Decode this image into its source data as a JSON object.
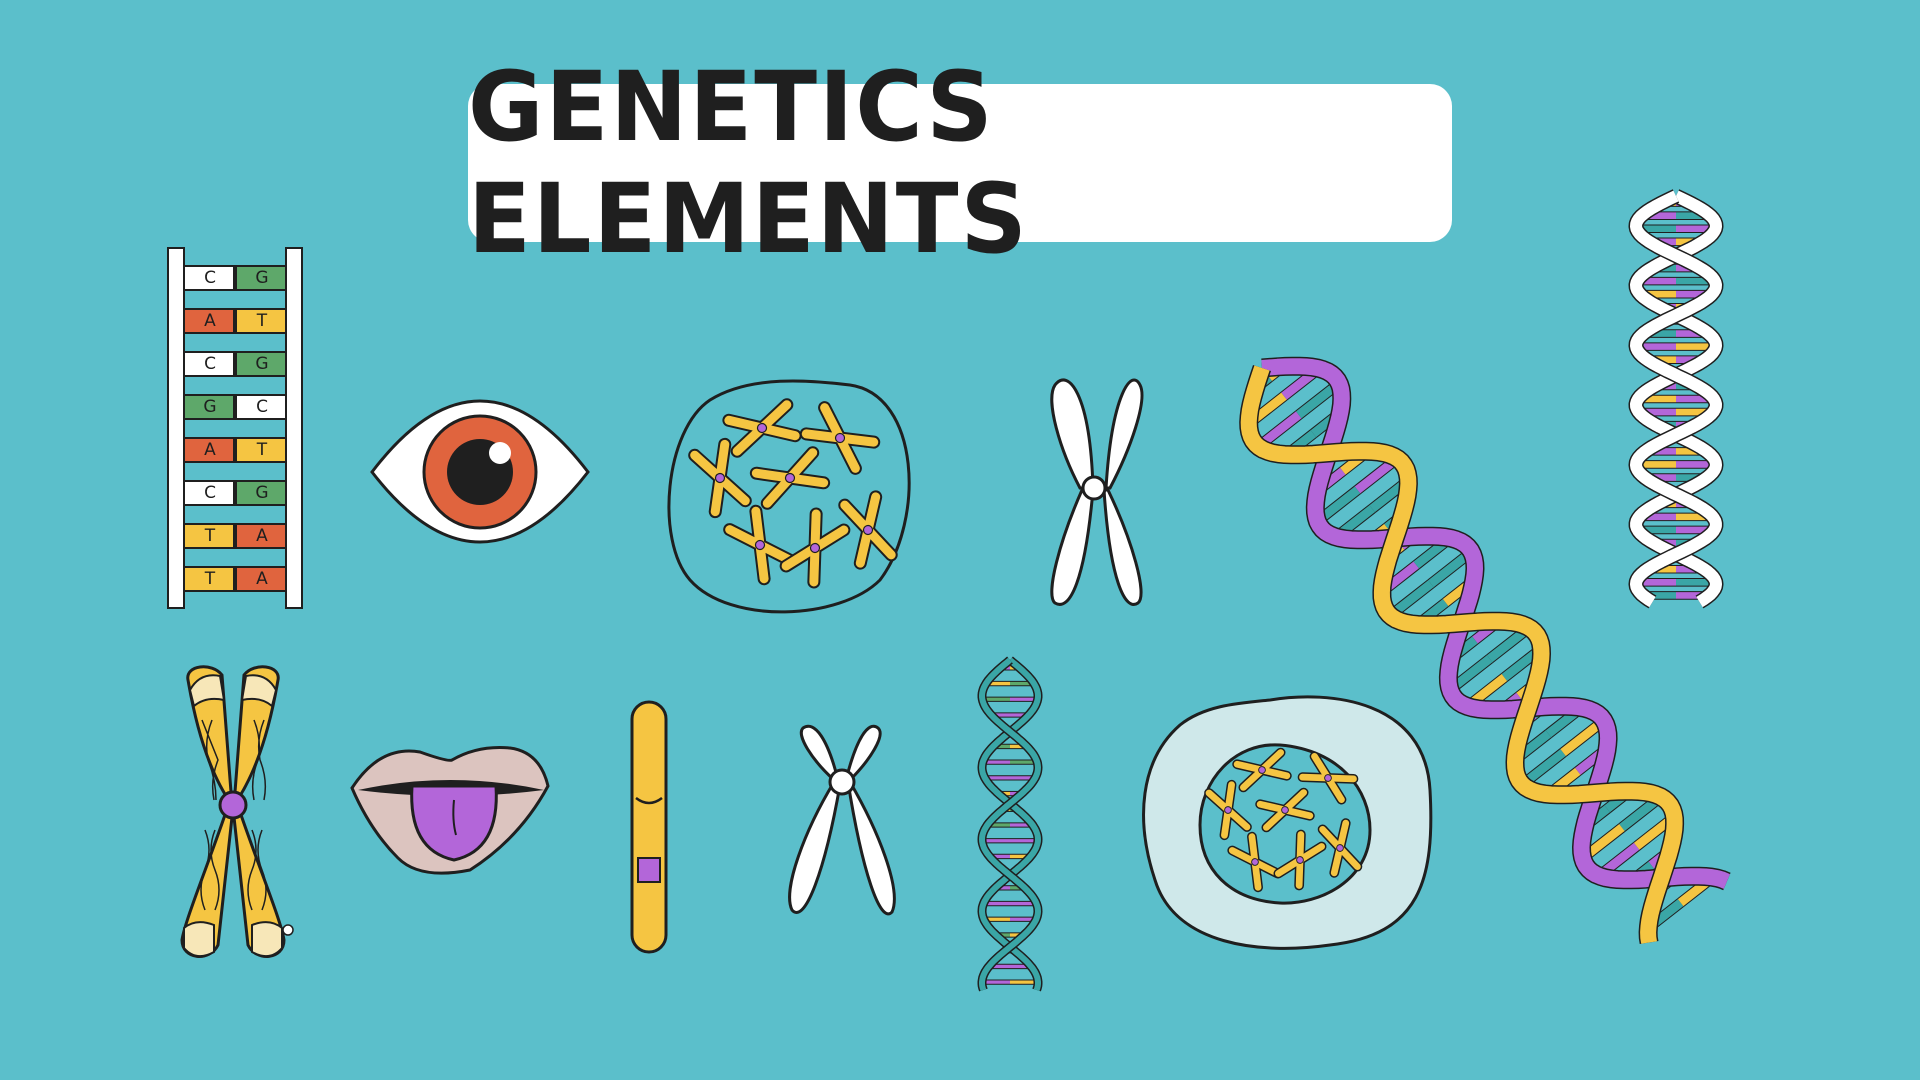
{
  "title": "GENETICS ELEMENTS",
  "ladder_pairs": [
    {
      "left": "C",
      "right": "G"
    },
    {
      "left": "A",
      "right": "T"
    },
    {
      "left": "C",
      "right": "G"
    },
    {
      "left": "G",
      "right": "C"
    },
    {
      "left": "A",
      "right": "T"
    },
    {
      "left": "C",
      "right": "G"
    },
    {
      "left": "T",
      "right": "A"
    },
    {
      "left": "T",
      "right": "A"
    }
  ],
  "colors": {
    "background": "#5bbfcb",
    "yellow": "#f5c542",
    "purple": "#b366d9",
    "orange": "#e0643e",
    "green": "#5ea86a",
    "teal": "#3aa6a6",
    "outline": "#1f1f1f"
  },
  "icons": [
    "dna-base-pair-ladder-icon",
    "eye-icon",
    "cell-nucleus-chromosomes-icon",
    "white-chromosome-icon",
    "large-dna-helix-icon",
    "white-dna-helix-icon",
    "yellow-chromosome-icon",
    "tongue-icon",
    "single-chromatid-icon",
    "small-white-chromosome-icon",
    "small-dna-helix-icon",
    "cell-icon"
  ]
}
